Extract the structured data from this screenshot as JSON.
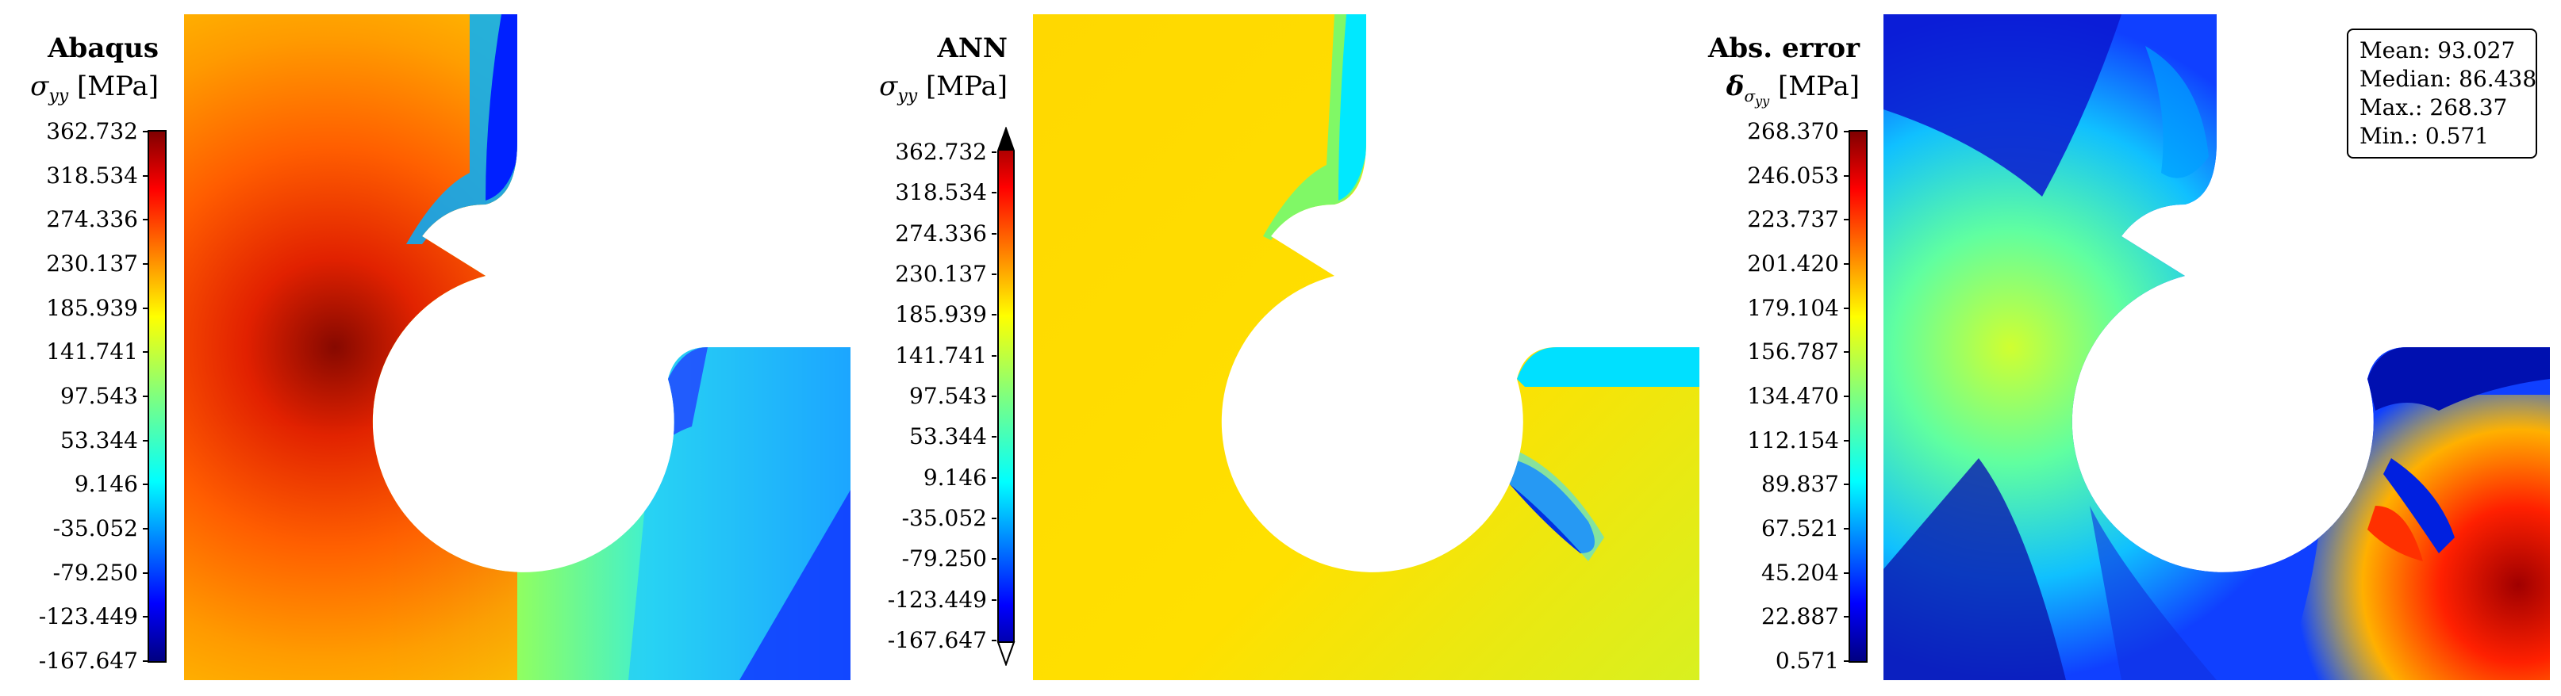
{
  "colors": {
    "jet": [
      "#00007f",
      "#0000ff",
      "#007fff",
      "#00ffff",
      "#7fff7f",
      "#ffff00",
      "#ff7f00",
      "#ff0000",
      "#7f0000"
    ]
  },
  "chart_data": [
    {
      "type": "heatmap",
      "title": "Abaqus",
      "unit_label": "σyy [MPa]",
      "colorbar_ticks": [
        "362.732",
        "318.534",
        "274.336",
        "230.137",
        "185.939",
        "141.741",
        "97.543",
        "53.344",
        "9.146",
        "-35.052",
        "-79.250",
        "-123.449",
        "-167.647"
      ],
      "range": [
        -167.647,
        362.732
      ]
    },
    {
      "type": "heatmap",
      "title": "ANN",
      "unit_label": "σyy [MPa]",
      "colorbar_ticks": [
        "362.732",
        "318.534",
        "274.336",
        "230.137",
        "185.939",
        "141.741",
        "97.543",
        "53.344",
        "9.146",
        "-35.052",
        "-79.250",
        "-123.449",
        "-167.647"
      ],
      "range": [
        -167.647,
        362.732
      ],
      "colorbar_extend": "both"
    },
    {
      "type": "heatmap",
      "title": "Abs. error",
      "unit_label": "δσyy [MPa]",
      "colorbar_ticks": [
        "268.370",
        "246.053",
        "223.737",
        "201.420",
        "179.104",
        "156.787",
        "134.470",
        "112.154",
        "89.837",
        "67.521",
        "45.204",
        "22.887",
        "0.571"
      ],
      "range": [
        0.571,
        268.37
      ],
      "stats": [
        "Mean: 93.027",
        "Median: 86.438",
        "Max.: 268.37",
        "Min.: 0.571"
      ]
    }
  ]
}
